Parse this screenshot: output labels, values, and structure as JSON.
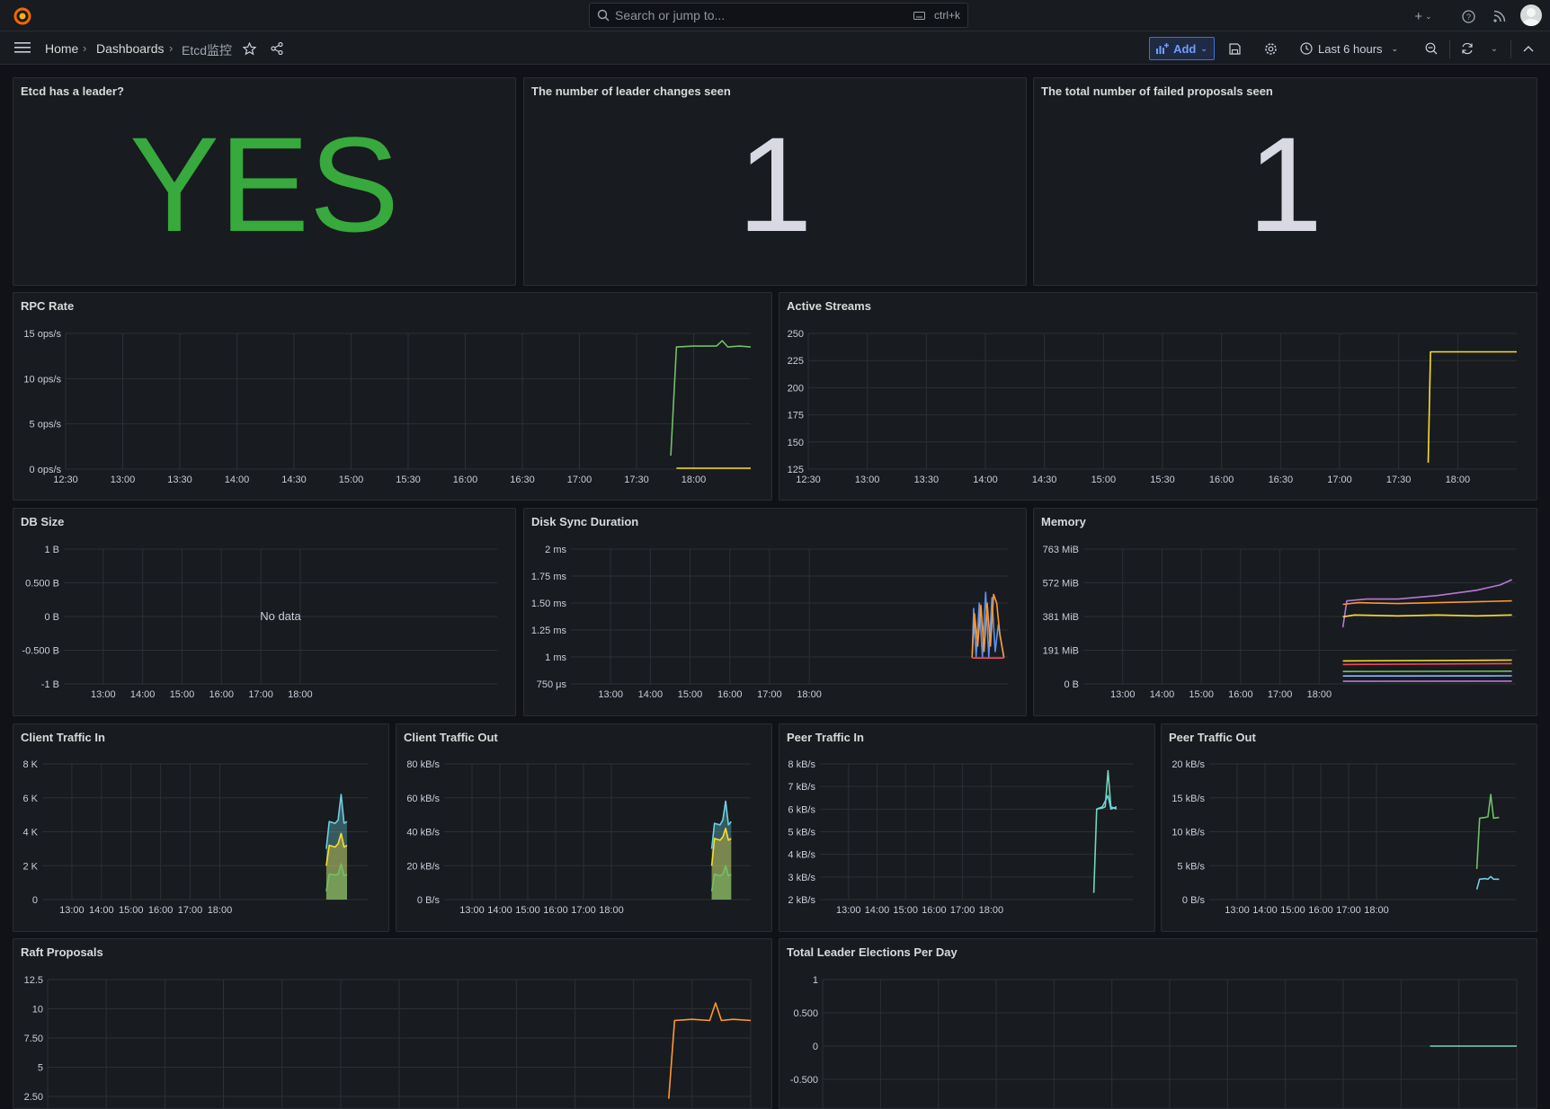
{
  "topbar": {
    "search_placeholder": "Search or jump to...",
    "search_shortcut": "ctrl+k"
  },
  "breadcrumb": [
    "Home",
    "Dashboards",
    "Etcd监控"
  ],
  "toolbar": {
    "add_label": "Add",
    "time_range": "Last 6 hours"
  },
  "colors": {
    "green": "#73bf69",
    "yellow": "#fade2a",
    "stat_green": "#37a93d",
    "stat_white": "#d8d9e3",
    "orange": "#ff9830",
    "blue": "#5794f2",
    "purple": "#b877d9",
    "cyan": "#6ed0e0",
    "teal": "#73d7b7"
  },
  "stats": [
    {
      "title": "Etcd has a leader?",
      "value": "YES",
      "color": "#37a93d"
    },
    {
      "title": "The number of leader changes seen",
      "value": "1",
      "color": "#d8d9e3"
    },
    {
      "title": "The total number of failed proposals seen",
      "value": "1",
      "color": "#d8d9e3"
    }
  ],
  "chart_data": [
    {
      "id": "rpc",
      "title": "RPC Rate",
      "type": "line",
      "yticks": [
        "15 ops/s",
        "10 ops/s",
        "5 ops/s",
        "0 ops/s"
      ],
      "ylim": [
        0,
        15
      ],
      "xticks": [
        "12:30",
        "13:00",
        "13:30",
        "14:00",
        "14:30",
        "15:00",
        "15:30",
        "16:00",
        "16:30",
        "17:00",
        "17:30",
        "18:00"
      ],
      "xlim": [
        0,
        6
      ],
      "series": [
        {
          "color": "#73bf69",
          "points": [
            [
              5.3,
              1.5
            ],
            [
              5.35,
              13.5
            ],
            [
              5.5,
              13.6
            ],
            [
              5.7,
              13.6
            ],
            [
              5.75,
              14.2
            ],
            [
              5.8,
              13.5
            ],
            [
              5.9,
              13.6
            ],
            [
              6,
              13.5
            ]
          ]
        },
        {
          "color": "#fade2a",
          "points": [
            [
              5.35,
              0.1
            ],
            [
              6,
              0.1
            ]
          ]
        }
      ]
    },
    {
      "id": "streams",
      "title": "Active Streams",
      "type": "line",
      "yticks": [
        "250",
        "225",
        "200",
        "175",
        "150",
        "125"
      ],
      "ylim": [
        125,
        250
      ],
      "xticks": [
        "12:30",
        "13:00",
        "13:30",
        "14:00",
        "14:30",
        "15:00",
        "15:30",
        "16:00",
        "16:30",
        "17:00",
        "17:30",
        "18:00"
      ],
      "xlim": [
        0,
        6
      ],
      "series": [
        {
          "color": "#fade2a",
          "points": [
            [
              5.25,
              131
            ],
            [
              5.27,
              233
            ],
            [
              6,
              233
            ]
          ]
        }
      ]
    },
    {
      "id": "dbsize",
      "title": "DB Size",
      "type": "line",
      "yticks": [
        "1 B",
        "0.500 B",
        "0 B",
        "-0.500 B",
        "-1 B"
      ],
      "ylim": [
        -1,
        1
      ],
      "xticks": [
        "13:00",
        "14:00",
        "15:00",
        "16:00",
        "17:00",
        "18:00"
      ],
      "xlim": [
        0,
        5.5
      ],
      "nodata": "No data",
      "series": []
    },
    {
      "id": "disksync",
      "title": "Disk Sync Duration",
      "type": "line",
      "yticks": [
        "2 ms",
        "1.75 ms",
        "1.50 ms",
        "1.25 ms",
        "1 ms",
        "750 μs"
      ],
      "ylim": [
        0.75,
        2
      ],
      "xticks": [
        "13:00",
        "14:00",
        "15:00",
        "16:00",
        "17:00",
        "18:00"
      ],
      "xlim": [
        0,
        5.5
      ],
      "series": [
        {
          "color": "#5794f2",
          "points": [
            [
              5.05,
              0.99
            ],
            [
              5.07,
              1.45
            ],
            [
              5.1,
              1.0
            ],
            [
              5.14,
              1.5
            ],
            [
              5.18,
              1.0
            ],
            [
              5.22,
              1.6
            ],
            [
              5.26,
              1.0
            ],
            [
              5.3,
              1.55
            ],
            [
              5.34,
              1.05
            ],
            [
              5.38,
              1.3
            ],
            [
              5.45,
              0.99
            ]
          ]
        },
        {
          "color": "#ff9830",
          "points": [
            [
              5.05,
              1.0
            ],
            [
              5.08,
              1.4
            ],
            [
              5.12,
              1.1
            ],
            [
              5.16,
              1.48
            ],
            [
              5.2,
              1.05
            ],
            [
              5.24,
              1.5
            ],
            [
              5.28,
              1.1
            ],
            [
              5.32,
              1.58
            ],
            [
              5.36,
              1.5
            ],
            [
              5.4,
              1.2
            ],
            [
              5.45,
              1.0
            ]
          ]
        },
        {
          "color": "#f2495c",
          "points": [
            [
              5.05,
              0.99
            ],
            [
              5.45,
              0.99
            ]
          ]
        }
      ]
    },
    {
      "id": "memory",
      "title": "Memory",
      "type": "line",
      "yticks": [
        "763 MiB",
        "572 MiB",
        "381 MiB",
        "191 MiB",
        "0 B"
      ],
      "ylim": [
        0,
        763
      ],
      "xticks": [
        "13:00",
        "14:00",
        "15:00",
        "16:00",
        "17:00",
        "18:00"
      ],
      "xlim": [
        0,
        5.5
      ],
      "series": [
        {
          "color": "#b877d9",
          "points": [
            [
              3.3,
              320
            ],
            [
              3.35,
              470
            ],
            [
              3.6,
              480
            ],
            [
              4.0,
              480
            ],
            [
              4.5,
              500
            ],
            [
              5.0,
              530
            ],
            [
              5.3,
              560
            ],
            [
              5.45,
              590
            ]
          ]
        },
        {
          "color": "#ff9830",
          "points": [
            [
              3.3,
              450
            ],
            [
              3.5,
              460
            ],
            [
              4,
              455
            ],
            [
              4.5,
              460
            ],
            [
              5,
              465
            ],
            [
              5.45,
              470
            ]
          ]
        },
        {
          "color": "#fade2a",
          "points": [
            [
              3.3,
              380
            ],
            [
              3.45,
              390
            ],
            [
              4,
              385
            ],
            [
              4.5,
              390
            ],
            [
              5,
              385
            ],
            [
              5.45,
              390
            ]
          ]
        },
        {
          "color": "#fade2a",
          "points": [
            [
              3.3,
              130
            ],
            [
              5.45,
              135
            ]
          ]
        },
        {
          "color": "#f2495c",
          "points": [
            [
              3.3,
              110
            ],
            [
              5.45,
              115
            ]
          ]
        },
        {
          "color": "#73bf69",
          "points": [
            [
              3.3,
              70
            ],
            [
              5.45,
              72
            ]
          ]
        },
        {
          "color": "#8ab8ff",
          "points": [
            [
              3.3,
              45
            ],
            [
              5.45,
              46
            ]
          ]
        },
        {
          "color": "#b877d9",
          "points": [
            [
              3.3,
              15
            ],
            [
              5.45,
              16
            ]
          ]
        }
      ]
    },
    {
      "id": "clientin",
      "title": "Client Traffic In",
      "type": "area",
      "yticks": [
        "8 K",
        "6 K",
        "4 K",
        "2 K",
        "0"
      ],
      "ylim": [
        0,
        8000
      ],
      "xticks": [
        "13:00",
        "14:00",
        "15:00",
        "16:00",
        "17:00",
        "18:00"
      ],
      "xlim": [
        0,
        5.5
      ],
      "series": [
        {
          "color": "#6ed0e0",
          "points": [
            [
              4.8,
              3000
            ],
            [
              4.85,
              4600
            ],
            [
              4.95,
              4500
            ],
            [
              5.0,
              4700
            ],
            [
              5.05,
              6200
            ],
            [
              5.1,
              4500
            ],
            [
              5.15,
              4600
            ]
          ]
        },
        {
          "color": "#fade2a",
          "points": [
            [
              4.8,
              2000
            ],
            [
              4.85,
              3200
            ],
            [
              4.95,
              3100
            ],
            [
              5.0,
              3300
            ],
            [
              5.05,
              3900
            ],
            [
              5.1,
              3100
            ],
            [
              5.15,
              3200
            ]
          ]
        },
        {
          "color": "#73bf69",
          "points": [
            [
              4.8,
              500
            ],
            [
              4.85,
              1500
            ],
            [
              4.95,
              1450
            ],
            [
              5.0,
              1500
            ],
            [
              5.05,
              2100
            ],
            [
              5.1,
              1400
            ],
            [
              5.15,
              1500
            ]
          ]
        }
      ]
    },
    {
      "id": "clientout",
      "title": "Client Traffic Out",
      "type": "area",
      "yticks": [
        "80 kB/s",
        "60 kB/s",
        "40 kB/s",
        "20 kB/s",
        "0 B/s"
      ],
      "ylim": [
        0,
        80
      ],
      "xticks": [
        "13:00",
        "14:00",
        "15:00",
        "16:00",
        "17:00",
        "18:00"
      ],
      "xlim": [
        0,
        5.5
      ],
      "series": [
        {
          "color": "#6ed0e0",
          "points": [
            [
              4.8,
              30
            ],
            [
              4.85,
              45
            ],
            [
              4.95,
              44
            ],
            [
              5.0,
              47
            ],
            [
              5.05,
              58
            ],
            [
              5.1,
              44
            ],
            [
              5.15,
              46
            ]
          ]
        },
        {
          "color": "#fade2a",
          "points": [
            [
              4.8,
              20
            ],
            [
              4.85,
              36
            ],
            [
              4.95,
              35
            ],
            [
              5.0,
              37
            ],
            [
              5.05,
              42
            ],
            [
              5.1,
              35
            ],
            [
              5.15,
              36
            ]
          ]
        },
        {
          "color": "#73bf69",
          "points": [
            [
              4.8,
              5
            ],
            [
              4.85,
              15
            ],
            [
              4.95,
              14
            ],
            [
              5.0,
              15
            ],
            [
              5.05,
              20
            ],
            [
              5.1,
              14
            ],
            [
              5.15,
              15
            ]
          ]
        }
      ]
    },
    {
      "id": "peerin",
      "title": "Peer Traffic In",
      "type": "line",
      "yticks": [
        "8 kB/s",
        "7 kB/s",
        "6 kB/s",
        "5 kB/s",
        "4 kB/s",
        "3 kB/s",
        "2 kB/s"
      ],
      "ylim": [
        2,
        8
      ],
      "xticks": [
        "13:00",
        "14:00",
        "15:00",
        "16:00",
        "17:00",
        "18:00"
      ],
      "xlim": [
        0,
        5.5
      ],
      "series": [
        {
          "color": "#73d7b7",
          "points": [
            [
              4.8,
              2.3
            ],
            [
              4.85,
              6.0
            ],
            [
              4.95,
              6.05
            ],
            [
              5.0,
              6.1
            ],
            [
              5.05,
              7.7
            ],
            [
              5.1,
              6.1
            ],
            [
              5.2,
              6.0
            ]
          ]
        },
        {
          "color": "#6ed0e0",
          "points": [
            [
              4.85,
              6.0
            ],
            [
              4.95,
              6.1
            ],
            [
              5.05,
              6.6
            ],
            [
              5.1,
              6.0
            ],
            [
              5.2,
              6.1
            ]
          ]
        }
      ]
    },
    {
      "id": "peerout",
      "title": "Peer Traffic Out",
      "type": "line",
      "yticks": [
        "20 kB/s",
        "15 kB/s",
        "10 kB/s",
        "5 kB/s",
        "0 B/s"
      ],
      "ylim": [
        0,
        20
      ],
      "xticks": [
        "13:00",
        "14:00",
        "15:00",
        "16:00",
        "17:00",
        "18:00"
      ],
      "xlim": [
        0,
        5.5
      ],
      "series": [
        {
          "color": "#73bf69",
          "points": [
            [
              4.8,
              4.5
            ],
            [
              4.85,
              12
            ],
            [
              4.95,
              12.1
            ],
            [
              5.0,
              12.2
            ],
            [
              5.05,
              15.5
            ],
            [
              5.1,
              12.0
            ],
            [
              5.2,
              12.1
            ]
          ]
        },
        {
          "color": "#6ed0e0",
          "points": [
            [
              4.8,
              1.5
            ],
            [
              4.85,
              3.0
            ],
            [
              4.95,
              3.1
            ],
            [
              5.0,
              3.0
            ],
            [
              5.05,
              3.4
            ],
            [
              5.1,
              3.0
            ],
            [
              5.2,
              3.0
            ]
          ]
        }
      ]
    },
    {
      "id": "raft",
      "title": "Raft Proposals",
      "type": "line",
      "yticks": [
        "12.5",
        "10",
        "7.50",
        "5",
        "2.50"
      ],
      "ylim": [
        2.5,
        12.5
      ],
      "xticks": [],
      "xlim": [
        0,
        6
      ],
      "series": [
        {
          "color": "#ff9830",
          "points": [
            [
              5.3,
              2.3
            ],
            [
              5.35,
              9
            ],
            [
              5.5,
              9.1
            ],
            [
              5.65,
              9.0
            ],
            [
              5.7,
              10.5
            ],
            [
              5.75,
              9.0
            ],
            [
              5.85,
              9.1
            ],
            [
              6,
              9.0
            ]
          ]
        }
      ]
    },
    {
      "id": "elections",
      "title": "Total Leader Elections Per Day",
      "type": "line",
      "yticks": [
        "1",
        "0.500",
        "0",
        "-0.500"
      ],
      "ylim": [
        -0.5,
        1
      ],
      "xticks": [],
      "xlim": [
        0,
        6
      ],
      "series": [
        {
          "color": "#73d7b7",
          "points": [
            [
              5.25,
              0
            ],
            [
              6,
              0
            ]
          ]
        }
      ]
    }
  ]
}
